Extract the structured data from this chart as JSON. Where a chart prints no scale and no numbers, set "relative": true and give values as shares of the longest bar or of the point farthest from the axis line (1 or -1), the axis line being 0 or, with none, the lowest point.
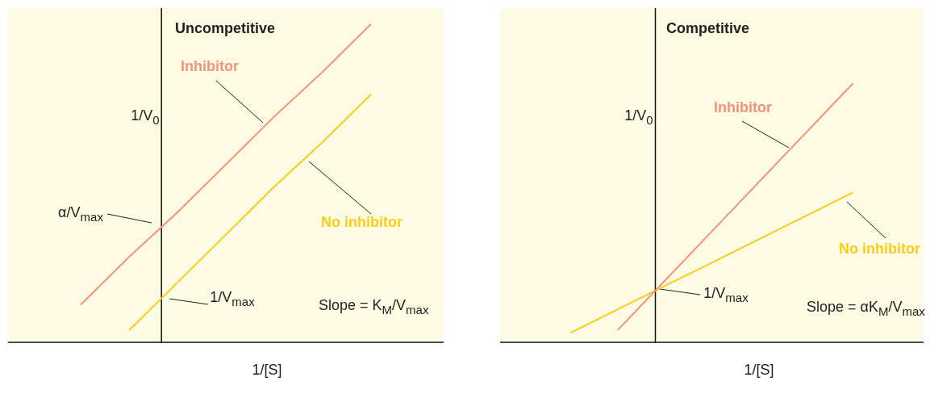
{
  "chart_data": [
    {
      "type": "line",
      "title": "Uncompetitive",
      "xlabel": "1/[S]",
      "ylabel": "1/V$_{0}$",
      "relative": true,
      "categories": [
        null,
        null,
        null,
        null,
        null,
        null,
        null,
        null,
        null
      ],
      "series": [
        {
          "name": "Inhibitor",
          "color": "#f4937a",
          "values": [
            null,
            0.12,
            0.27,
            0.41,
            0.56,
            0.71,
            0.85,
            1,
            null
          ]
        },
        {
          "name": "No inhibitor",
          "color": "#f9cc1a",
          "values": [
            null,
            null,
            0.04,
            0.19,
            0.34,
            0.49,
            0.63,
            0.78,
            null
          ]
        }
      ],
      "annotations": [
        "α/V$_{max}$",
        "1/V$_{max}$",
        "Slope = K$_{M}$/V$_{max}$"
      ]
    },
    {
      "type": "line",
      "title": "Competitive",
      "xlabel": "1/[S]",
      "ylabel": "1/V$_{0}$",
      "relative": true,
      "categories": [
        null,
        null,
        null,
        null,
        null,
        null,
        null,
        null,
        null
      ],
      "series": [
        {
          "name": "Inhibitor",
          "color": "#f4937a",
          "values": [
            null,
            null,
            0.05,
            0.24,
            0.43,
            0.62,
            0.81,
            1,
            null
          ]
        },
        {
          "name": "No inhibitor",
          "color": "#f9cc1a",
          "values": [
            null,
            0.04,
            0.13,
            0.22,
            0.31,
            0.4,
            0.49,
            0.58,
            null
          ]
        }
      ],
      "annotations": [
        "1/V$_{max}$",
        "Slope = αK$_{M}$/V$_{max}$"
      ]
    }
  ]
}
